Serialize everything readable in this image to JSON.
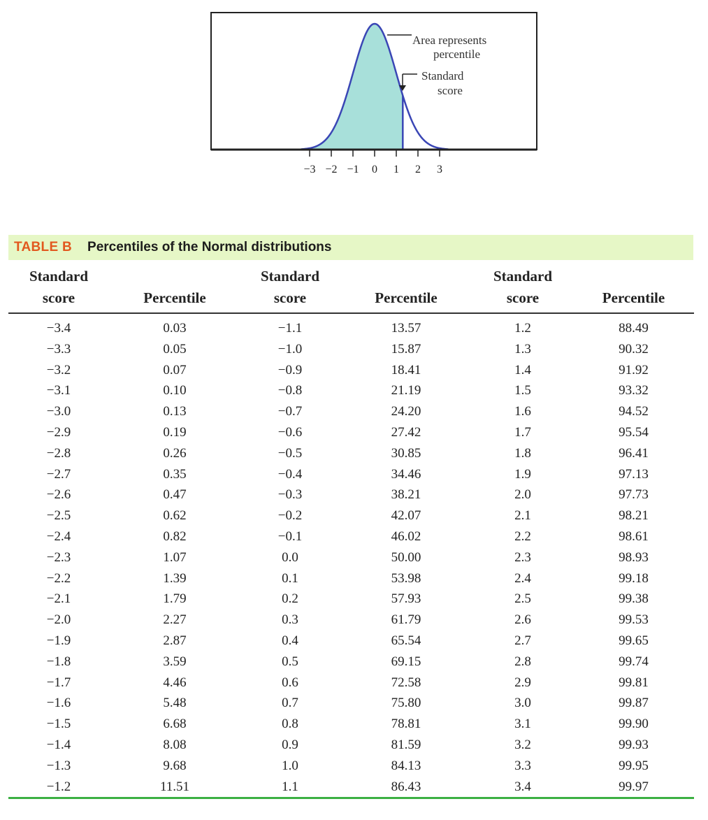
{
  "figure": {
    "annotation_area": [
      "Area represents",
      "percentile"
    ],
    "annotation_score": [
      "Standard",
      "score"
    ],
    "axis_ticks": [
      "−3",
      "−2",
      "−1",
      "0",
      "1",
      "2",
      "3"
    ],
    "shaded_cutoff": 1.3,
    "colors": {
      "fill": "#a8e0da",
      "curve": "#3a46b5",
      "axis": "#222222"
    }
  },
  "table": {
    "label": "TABLE B",
    "title": "Percentiles of the Normal distributions",
    "headers": [
      [
        "Standard",
        "score"
      ],
      [
        "Percentile"
      ],
      [
        "Standard",
        "score"
      ],
      [
        "Percentile"
      ],
      [
        "Standard",
        "score"
      ],
      [
        "Percentile"
      ]
    ],
    "rows": [
      [
        "−3.4",
        "0.03",
        "−1.1",
        "13.57",
        "1.2",
        "88.49"
      ],
      [
        "−3.3",
        "0.05",
        "−1.0",
        "15.87",
        "1.3",
        "90.32"
      ],
      [
        "−3.2",
        "0.07",
        "−0.9",
        "18.41",
        "1.4",
        "91.92"
      ],
      [
        "−3.1",
        "0.10",
        "−0.8",
        "21.19",
        "1.5",
        "93.32"
      ],
      [
        "−3.0",
        "0.13",
        "−0.7",
        "24.20",
        "1.6",
        "94.52"
      ],
      [
        "−2.9",
        "0.19",
        "−0.6",
        "27.42",
        "1.7",
        "95.54"
      ],
      [
        "−2.8",
        "0.26",
        "−0.5",
        "30.85",
        "1.8",
        "96.41"
      ],
      [
        "−2.7",
        "0.35",
        "−0.4",
        "34.46",
        "1.9",
        "97.13"
      ],
      [
        "−2.6",
        "0.47",
        "−0.3",
        "38.21",
        "2.0",
        "97.73"
      ],
      [
        "−2.5",
        "0.62",
        "−0.2",
        "42.07",
        "2.1",
        "98.21"
      ],
      [
        "−2.4",
        "0.82",
        "−0.1",
        "46.02",
        "2.2",
        "98.61"
      ],
      [
        "−2.3",
        "1.07",
        "0.0",
        "50.00",
        "2.3",
        "98.93"
      ],
      [
        "−2.2",
        "1.39",
        "0.1",
        "53.98",
        "2.4",
        "99.18"
      ],
      [
        "−2.1",
        "1.79",
        "0.2",
        "57.93",
        "2.5",
        "99.38"
      ],
      [
        "−2.0",
        "2.27",
        "0.3",
        "61.79",
        "2.6",
        "99.53"
      ],
      [
        "−1.9",
        "2.87",
        "0.4",
        "65.54",
        "2.7",
        "99.65"
      ],
      [
        "−1.8",
        "3.59",
        "0.5",
        "69.15",
        "2.8",
        "99.74"
      ],
      [
        "−1.7",
        "4.46",
        "0.6",
        "72.58",
        "2.9",
        "99.81"
      ],
      [
        "−1.6",
        "5.48",
        "0.7",
        "75.80",
        "3.0",
        "99.87"
      ],
      [
        "−1.5",
        "6.68",
        "0.8",
        "78.81",
        "3.1",
        "99.90"
      ],
      [
        "−1.4",
        "8.08",
        "0.9",
        "81.59",
        "3.2",
        "99.93"
      ],
      [
        "−1.3",
        "9.68",
        "1.0",
        "84.13",
        "3.3",
        "99.95"
      ],
      [
        "−1.2",
        "11.51",
        "1.1",
        "86.43",
        "3.4",
        "99.97"
      ]
    ]
  }
}
